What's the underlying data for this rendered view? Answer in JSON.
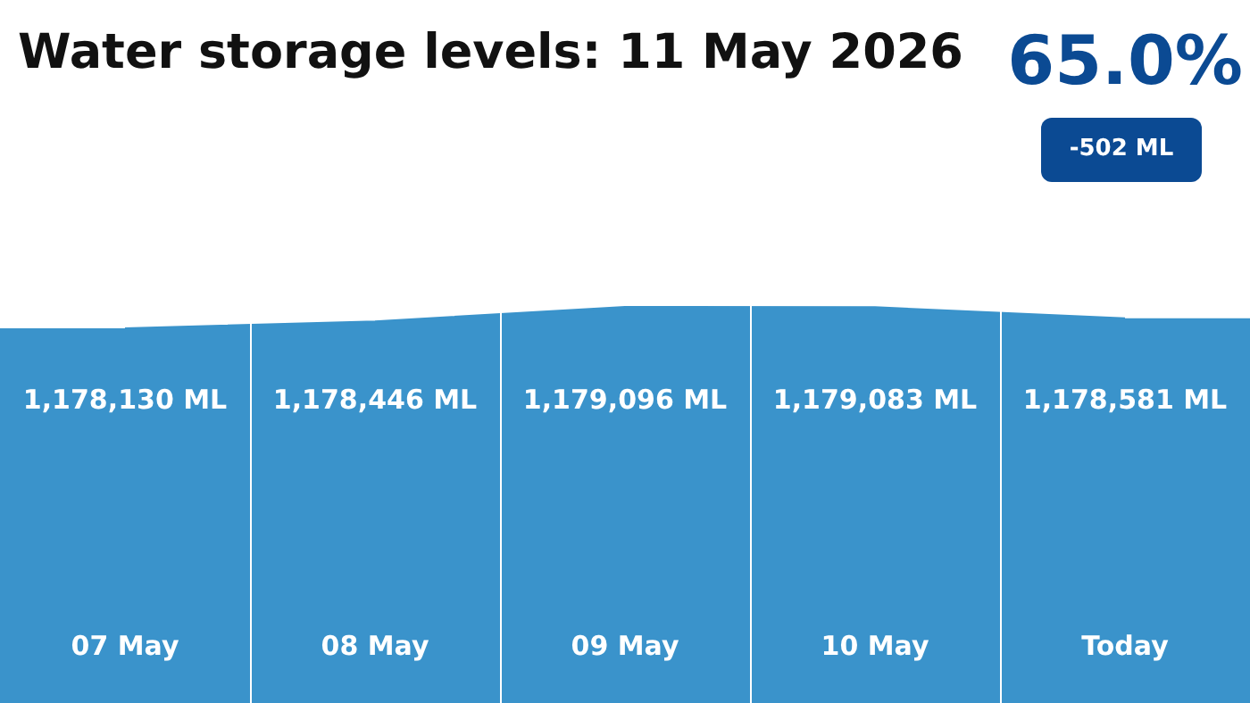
{
  "chart_data": {
    "type": "area",
    "title": "Water storage levels: 11 May 2026",
    "categories": [
      "07 May",
      "08 May",
      "09 May",
      "10 May",
      "Today"
    ],
    "values": [
      1178130,
      1178446,
      1179096,
      1179083,
      1178581
    ],
    "value_labels": [
      "1,178,130 ML",
      "1,178,446 ML",
      "1,179,096 ML",
      "1,179,083 ML",
      "1,178,581 ML"
    ],
    "color": "#3a93cb",
    "grid": false,
    "annotations": [
      "65.0%",
      "-502 ML"
    ]
  }
}
